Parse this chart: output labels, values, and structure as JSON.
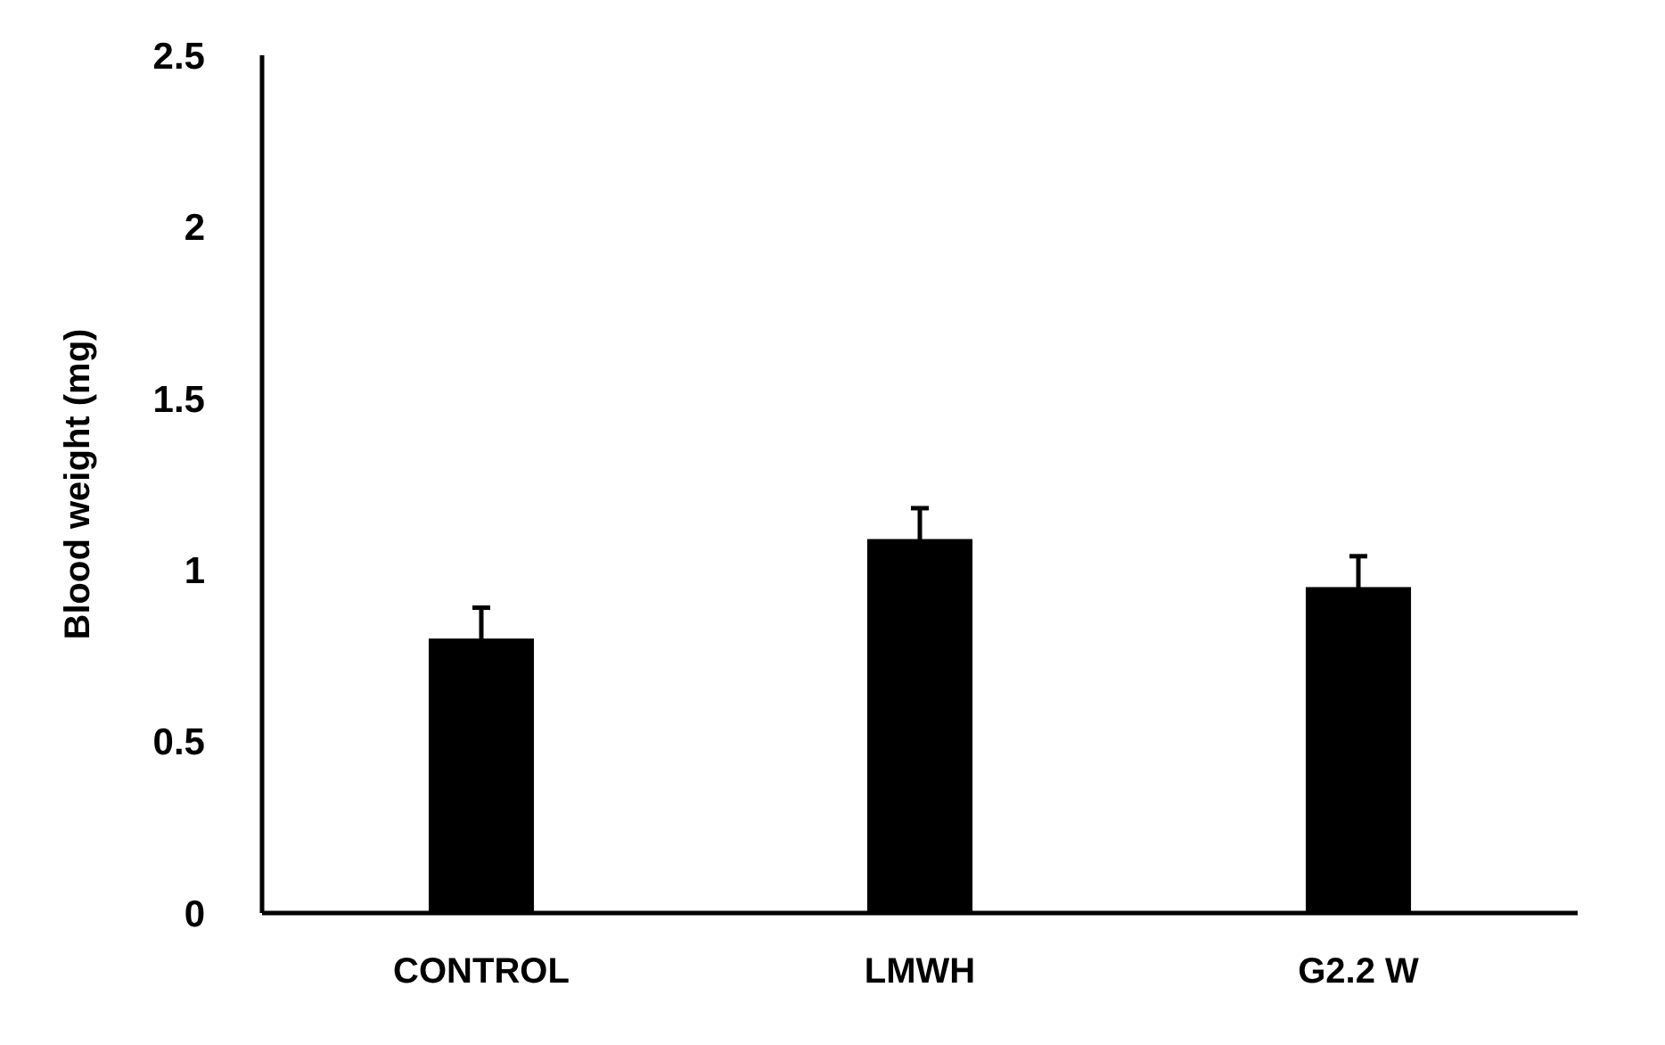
{
  "chart_data": {
    "type": "bar",
    "ylabel": "Blood weight (mg)",
    "categories": [
      "CONTROL",
      "LMWH",
      "G2.2 W"
    ],
    "values": [
      0.8,
      1.09,
      0.95
    ],
    "errors": [
      0.09,
      0.09,
      0.09
    ],
    "color": "#000000",
    "ylim": [
      0,
      2.5
    ],
    "yticks": [
      0,
      0.5,
      1,
      1.5,
      2,
      2.5
    ],
    "grid": false
  }
}
